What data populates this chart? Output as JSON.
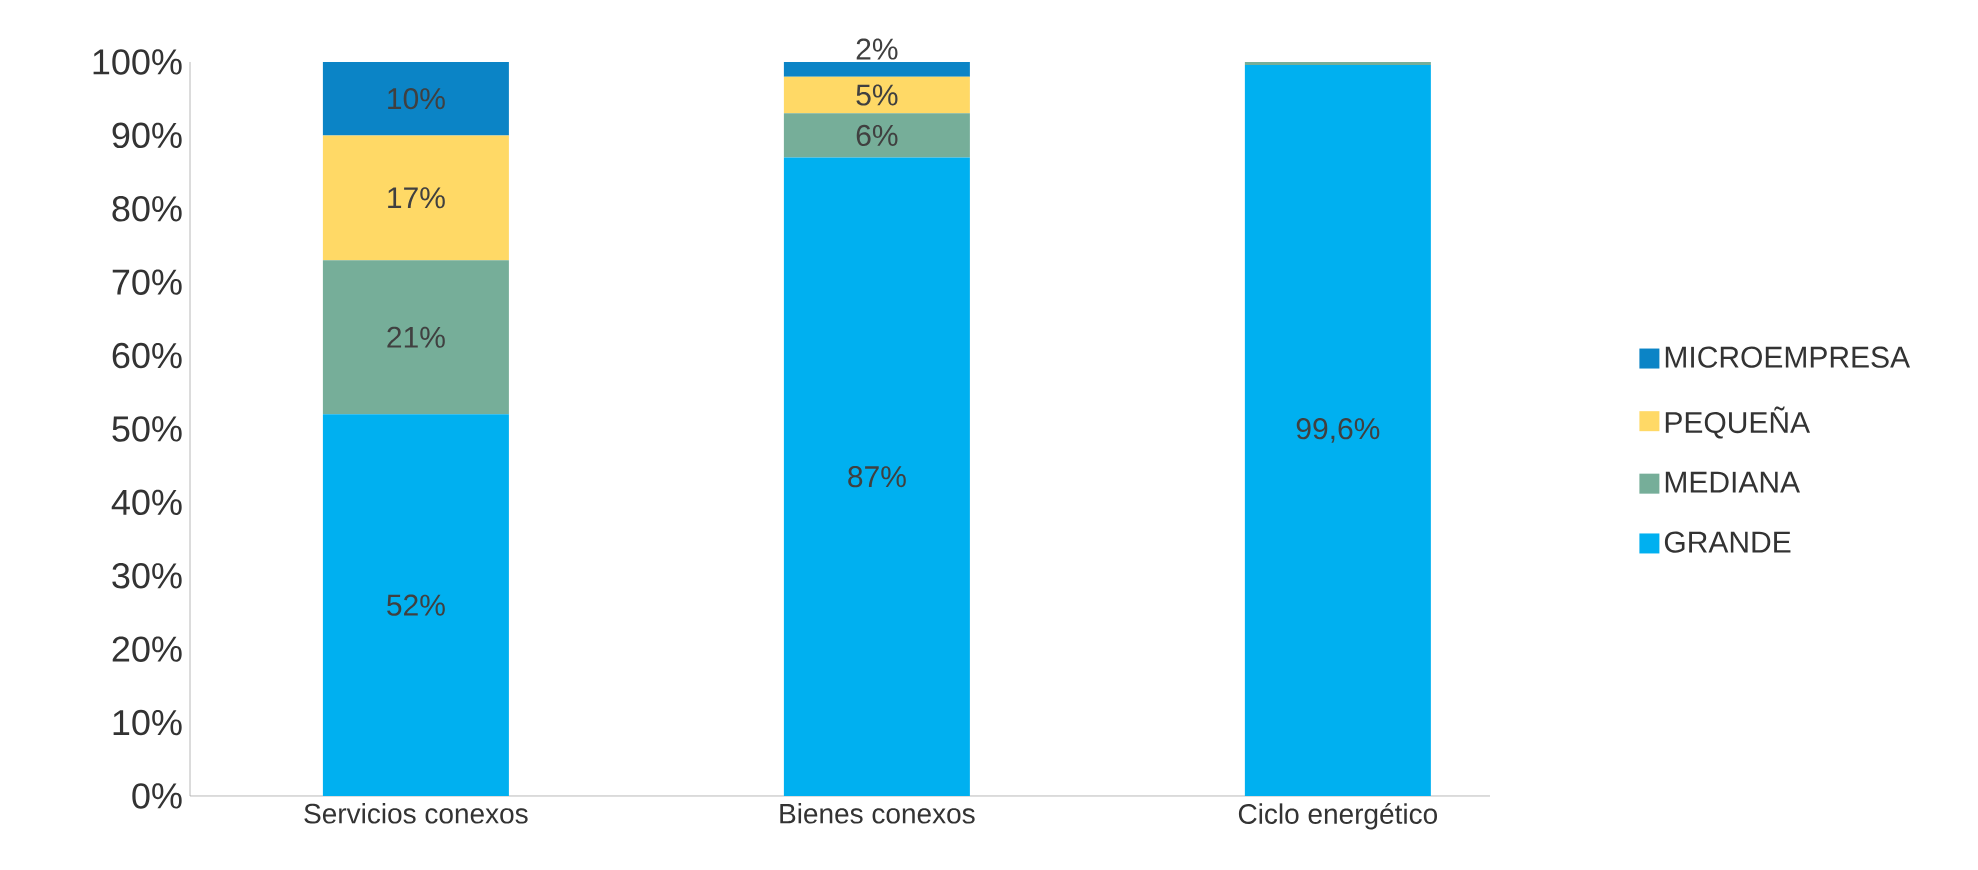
{
  "chart_data": {
    "type": "bar",
    "stacked": true,
    "categories": [
      "Servicios conexos",
      "Bienes conexos",
      "Ciclo energético"
    ],
    "series": [
      {
        "name": "GRANDE",
        "color": "#00b0f0",
        "values": [
          52,
          87,
          99.6
        ],
        "value_labels": [
          "52%",
          "87%",
          "99,6%"
        ]
      },
      {
        "name": "MEDIANA",
        "color": "#76ae99",
        "values": [
          21,
          6,
          0.4
        ],
        "value_labels": [
          "21%",
          "6%",
          null
        ]
      },
      {
        "name": "PEQUEÑA",
        "color": "#ffd966",
        "values": [
          17,
          5,
          null
        ],
        "value_labels": [
          "17%",
          "5%",
          null
        ]
      },
      {
        "name": "MICROEMPRESA",
        "color": "#0b84c6",
        "values": [
          10,
          2,
          null
        ],
        "value_labels": [
          "10%",
          "2%",
          null
        ]
      }
    ],
    "ylim": [
      0,
      100
    ],
    "yticks": [
      {
        "value": 0,
        "label": "0%"
      },
      {
        "value": 10,
        "label": "10%"
      },
      {
        "value": 20,
        "label": "20%"
      },
      {
        "value": 30,
        "label": "30%"
      },
      {
        "value": 40,
        "label": "40%"
      },
      {
        "value": 50,
        "label": "50%"
      },
      {
        "value": 60,
        "label": "60%"
      },
      {
        "value": 70,
        "label": "70%"
      },
      {
        "value": 80,
        "label": "80%"
      },
      {
        "value": 90,
        "label": "90%"
      },
      {
        "value": 100,
        "label": "100%"
      }
    ],
    "grid": false,
    "legend": "right"
  }
}
